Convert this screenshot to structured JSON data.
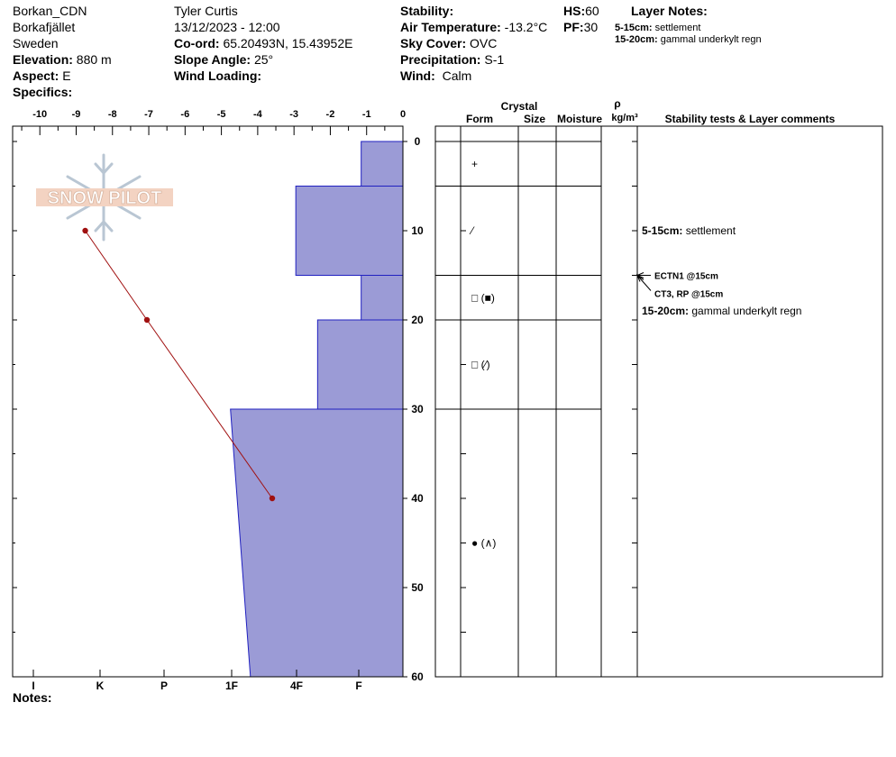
{
  "header": {
    "site": "Borkan_CDN",
    "area": "Borkafjället",
    "country": "Sweden",
    "elevation_label": "Elevation:",
    "elevation_value": "880 m",
    "aspect_label": "Aspect:",
    "aspect_value": "E",
    "specifics_label": "Specifics:",
    "observer": "Tyler Curtis",
    "datetime": "13/12/2023 - 12:00",
    "coord_label": "Co-ord:",
    "coord_value": "65.20493N, 15.43952E",
    "slope_label": "Slope Angle:",
    "slope_value": "25°",
    "wind_loading_label": "Wind Loading:",
    "stability_label": "Stability:",
    "air_temp_label": "Air Temperature:",
    "air_temp_value": "-13.2°C",
    "sky_label": "Sky Cover:",
    "sky_value": "OVC",
    "precip_label": "Precipitation:",
    "precip_value": "S-1",
    "wind_label": "Wind:",
    "wind_value": "Calm",
    "hs_label": "HS:",
    "hs_value": "60",
    "pf_label": "PF:",
    "pf_value": "30",
    "layer_notes_title": "Layer Notes:",
    "layer_notes": [
      {
        "range": "5-15cm:",
        "text": "settlement"
      },
      {
        "range": "15-20cm:",
        "text": "gammal underkylt regn"
      }
    ],
    "notes_label": "Notes:"
  },
  "logo": {
    "text": "SNOW PILOT"
  },
  "columns": {
    "crystal": "Crystal",
    "form": "Form",
    "size": "Size",
    "moisture": "Moisture",
    "rho": "ρ",
    "density_unit": "kg/m³",
    "comments": "Stability tests & Layer comments"
  },
  "chart_data": {
    "type": "snow_profile",
    "temp_axis": {
      "ticks": [
        -10,
        -9,
        -8,
        -7,
        -6,
        -5,
        -4,
        -3,
        -2,
        -1,
        0
      ],
      "range": [
        -10.75,
        0
      ]
    },
    "depth_axis": {
      "ticks": [
        0,
        10,
        20,
        30,
        40,
        50,
        60
      ],
      "range": [
        0,
        60
      ]
    },
    "hardness_axis": {
      "labels": [
        "I",
        "K",
        "P",
        "1F",
        "4F",
        "F"
      ]
    },
    "hardness_layers": [
      {
        "from": 0,
        "to": 5,
        "temp_top": -1.15,
        "temp_bottom": -1.15
      },
      {
        "from": 5,
        "to": 15,
        "temp_top": -2.95,
        "temp_bottom": -2.95
      },
      {
        "from": 15,
        "to": 20,
        "temp_top": -1.15,
        "temp_bottom": -1.15
      },
      {
        "from": 20,
        "to": 30,
        "temp_top": -2.35,
        "temp_bottom": -2.35
      },
      {
        "from": 30,
        "to": 60,
        "temp_top": -4.75,
        "temp_bottom": -4.2
      }
    ],
    "temperature_profile": [
      {
        "depth": 10,
        "temp": -8.75
      },
      {
        "depth": 20,
        "temp": -7.05
      },
      {
        "depth": 40,
        "temp": -3.6
      }
    ],
    "layer_boundaries": [
      0,
      5,
      15,
      20,
      30
    ],
    "crystals": [
      {
        "depth": 2.5,
        "symbol": "+"
      },
      {
        "depth": 10,
        "symbol": "⁄"
      },
      {
        "depth": 17.5,
        "symbol": "□ (■)"
      },
      {
        "depth": 25,
        "symbol": "□ (⁄)"
      },
      {
        "depth": 45,
        "symbol": "● (∧)"
      }
    ],
    "comments": [
      {
        "depth": 10,
        "range": "5-15cm:",
        "text": "settlement"
      },
      {
        "depth": 19,
        "range": "15-20cm:",
        "text": "gammal underkylt regn"
      }
    ],
    "stability_tests": [
      {
        "depth": 15,
        "text": "ECTN1 @15cm"
      },
      {
        "depth": 15,
        "text": "CT3, RP @15cm"
      }
    ],
    "colors": {
      "hardness_fill": "#9b9bd6",
      "hardness_stroke": "#2020c0",
      "temp_line": "#a01010"
    }
  }
}
